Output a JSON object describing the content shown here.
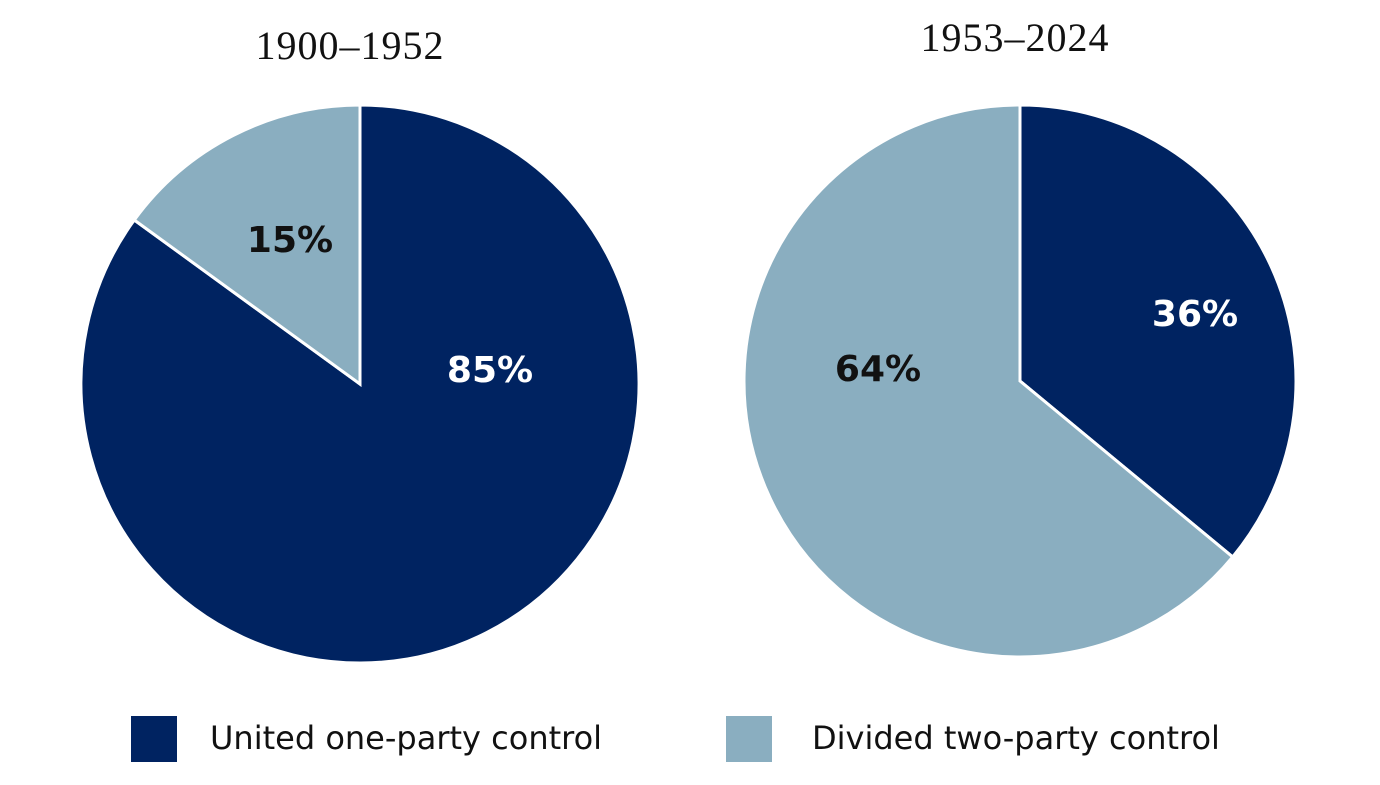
{
  "chart_data": [
    {
      "type": "pie",
      "title": "1900–1952",
      "categories": [
        "United one-party control",
        "Divided two-party control"
      ],
      "values": [
        85,
        15
      ],
      "value_labels": [
        "85%",
        "15%"
      ],
      "colors": [
        "#002361",
        "#8aaec0"
      ]
    },
    {
      "type": "pie",
      "title": "1953–2024",
      "categories": [
        "United one-party control",
        "Divided two-party control"
      ],
      "values": [
        36,
        64
      ],
      "value_labels": [
        "36%",
        "64%"
      ],
      "colors": [
        "#002361",
        "#8aaec0"
      ]
    }
  ]
}
